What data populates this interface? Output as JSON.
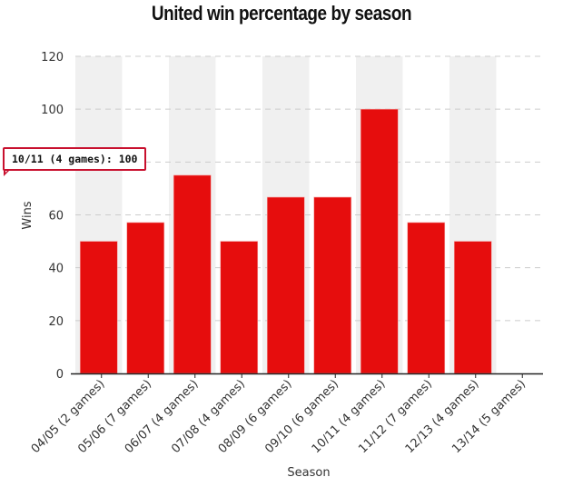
{
  "chart_data": {
    "type": "bar",
    "title": "United win percentage by season",
    "xlabel": "Season",
    "ylabel": "Wins",
    "ylim": [
      0,
      120
    ],
    "yticks": [
      0,
      20,
      40,
      60,
      80,
      100,
      120
    ],
    "ytick_labels": [
      "0",
      "20",
      "40",
      "60",
      "",
      "100",
      "120"
    ],
    "grid": true,
    "categories": [
      "04/05 (2 games)",
      "05/06 (7 games)",
      "06/07 (4 games)",
      "07/08 (4 games)",
      "08/09 (6 games)",
      "09/10 (6 games)",
      "10/11 (4 games)",
      "11/12 (7 games)",
      "12/13 (4 games)",
      "13/14 (5 games)"
    ],
    "values": [
      50,
      57.1,
      75,
      50,
      66.7,
      66.7,
      100,
      57.1,
      50,
      0
    ],
    "bar_color": "#e60d0d",
    "band_color": "#f0f0f0",
    "tooltip": {
      "text": "10/11 (4 games): 100",
      "border_color": "#c8102e"
    }
  }
}
